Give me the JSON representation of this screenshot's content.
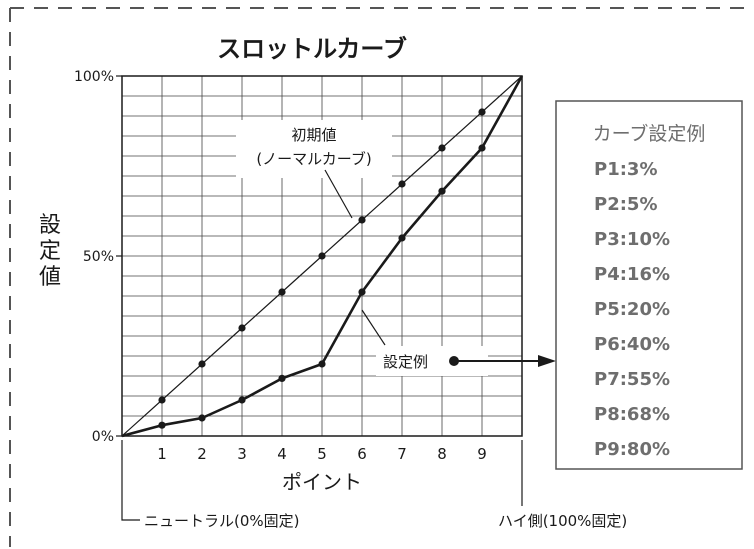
{
  "chart_data": {
    "type": "line",
    "title": "スロットルカーブ",
    "xlabel": "ポイント",
    "ylabel": "設定値",
    "x": [
      0,
      1,
      2,
      3,
      4,
      5,
      6,
      7,
      8,
      9,
      10
    ],
    "x_tick_labels": [
      "1",
      "2",
      "3",
      "4",
      "5",
      "6",
      "7",
      "8",
      "9"
    ],
    "y_tick_labels": [
      "0%",
      "50%",
      "100%"
    ],
    "xlim": [
      0,
      10
    ],
    "ylim": [
      0,
      100
    ],
    "grid": true,
    "series": [
      {
        "name": "初期値",
        "values": [
          0,
          10,
          20,
          30,
          40,
          50,
          60,
          70,
          80,
          90,
          100
        ]
      },
      {
        "name": "設定例",
        "values": [
          0,
          3,
          5,
          10,
          16,
          20,
          40,
          55,
          68,
          80,
          100
        ]
      }
    ],
    "annotations": {
      "initial_label_1": "初期値",
      "initial_label_2": "(ノーマルカーブ)",
      "example_label": "設定例",
      "neutral_label": "ニュートラル(0%固定)",
      "high_label": "ハイ側(100%固定)"
    }
  },
  "legend_box": {
    "title": "カーブ設定例",
    "items": [
      "P1:3%",
      "P2:5%",
      "P3:10%",
      "P4:16%",
      "P5:20%",
      "P6:40%",
      "P7:55%",
      "P8:68%",
      "P9:80%"
    ]
  },
  "colors": {
    "line": "#1a1a1a",
    "grid": "#444444",
    "legend_text": "#6e6e6e",
    "border": "#555555"
  }
}
